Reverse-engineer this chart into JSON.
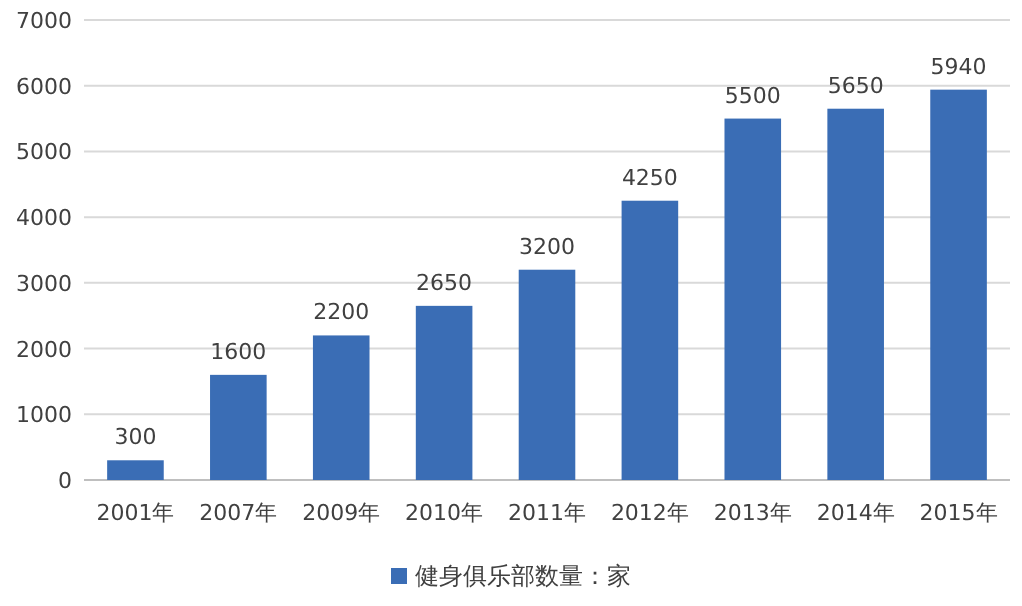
{
  "chart_data": {
    "type": "bar",
    "categories": [
      "2001年",
      "2007年",
      "2009年",
      "2010年",
      "2011年",
      "2012年",
      "2013年",
      "2014年",
      "2015年"
    ],
    "series": [
      {
        "name": "健身俱乐部数量：家",
        "color": "#3a6db5",
        "values": [
          300,
          1600,
          2200,
          2650,
          3200,
          4250,
          5500,
          5650,
          5940
        ]
      }
    ],
    "ylim": [
      0,
      7000
    ],
    "yticks": [
      0,
      1000,
      2000,
      3000,
      4000,
      5000,
      6000,
      7000
    ],
    "grid": "y",
    "data_labels": true,
    "legend": "bottom"
  }
}
